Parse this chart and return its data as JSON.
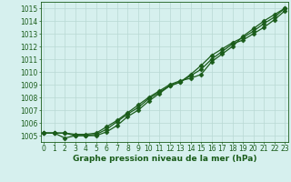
{
  "xlabel": "Graphe pression niveau de la mer (hPa)",
  "ylim": [
    1004.5,
    1015.5
  ],
  "xlim": [
    -0.3,
    23.3
  ],
  "yticks": [
    1005,
    1006,
    1007,
    1008,
    1009,
    1010,
    1011,
    1012,
    1013,
    1014,
    1015
  ],
  "xticks": [
    0,
    1,
    2,
    3,
    4,
    5,
    6,
    7,
    8,
    9,
    10,
    11,
    12,
    13,
    14,
    15,
    16,
    17,
    18,
    19,
    20,
    21,
    22,
    23
  ],
  "background_color": "#d6f0ee",
  "grid_color": "#b8d8d4",
  "line_color": "#1a5c1a",
  "line1": [
    1005.2,
    1005.2,
    1005.2,
    1005.1,
    1005.1,
    1005.2,
    1005.7,
    1006.2,
    1006.8,
    1007.4,
    1008.0,
    1008.5,
    1009.0,
    1009.3,
    1009.5,
    1009.8,
    1010.8,
    1011.4,
    1012.0,
    1012.8,
    1013.4,
    1014.0,
    1014.5,
    1015.0
  ],
  "line2": [
    1005.2,
    1005.2,
    1004.8,
    1005.0,
    1005.0,
    1005.1,
    1005.5,
    1006.1,
    1006.7,
    1007.2,
    1007.9,
    1008.4,
    1008.9,
    1009.2,
    1009.8,
    1010.5,
    1011.3,
    1011.8,
    1012.3,
    1012.7,
    1013.2,
    1013.8,
    1014.3,
    1015.0
  ],
  "line3": [
    1005.2,
    1005.2,
    1005.2,
    1005.0,
    1005.0,
    1005.0,
    1005.3,
    1005.8,
    1006.5,
    1007.0,
    1007.7,
    1008.3,
    1008.9,
    1009.2,
    1009.7,
    1010.2,
    1011.0,
    1011.6,
    1012.2,
    1012.5,
    1013.0,
    1013.5,
    1014.1,
    1014.8
  ],
  "marker": "D",
  "marker_size": 2.5,
  "linewidth": 0.9,
  "tick_fontsize": 5.5,
  "label_fontsize": 6.5,
  "label_fontweight": "bold",
  "label_color": "#1a5c1a"
}
